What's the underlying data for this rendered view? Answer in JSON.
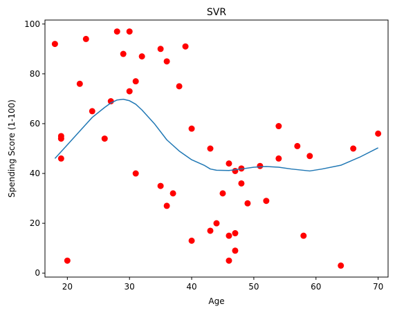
{
  "chart_data": {
    "type": "scatter",
    "title": "SVR",
    "xlabel": "Age",
    "ylabel": "Spending Score (1-100)",
    "xlim": [
      16.4,
      71.6
    ],
    "ylim": [
      -1.6,
      101.6
    ],
    "xticks": [
      20,
      30,
      40,
      50,
      60,
      70
    ],
    "yticks": [
      0,
      20,
      40,
      60,
      80,
      100
    ],
    "grid": false,
    "scatter_color": "#ff0000",
    "line_color": "#1f77b4",
    "points": [
      [
        18,
        92
      ],
      [
        19,
        55
      ],
      [
        19,
        54
      ],
      [
        19,
        46
      ],
      [
        20,
        5
      ],
      [
        22,
        76
      ],
      [
        23,
        94
      ],
      [
        24,
        65
      ],
      [
        26,
        54
      ],
      [
        27,
        69
      ],
      [
        28,
        97
      ],
      [
        29,
        88
      ],
      [
        30,
        97
      ],
      [
        30,
        73
      ],
      [
        31,
        77
      ],
      [
        31,
        40
      ],
      [
        32,
        87
      ],
      [
        35,
        90
      ],
      [
        35,
        35
      ],
      [
        36,
        85
      ],
      [
        36,
        27
      ],
      [
        37,
        32
      ],
      [
        38,
        75
      ],
      [
        39,
        91
      ],
      [
        40,
        58
      ],
      [
        40,
        13
      ],
      [
        43,
        50
      ],
      [
        43,
        17
      ],
      [
        44,
        20
      ],
      [
        45,
        32
      ],
      [
        46,
        44
      ],
      [
        46,
        15
      ],
      [
        46,
        5
      ],
      [
        47,
        41
      ],
      [
        47,
        16
      ],
      [
        47,
        9
      ],
      [
        48,
        42
      ],
      [
        48,
        36
      ],
      [
        49,
        28
      ],
      [
        51,
        43
      ],
      [
        52,
        29
      ],
      [
        54,
        59
      ],
      [
        54,
        46
      ],
      [
        57,
        51
      ],
      [
        58,
        15
      ],
      [
        59,
        47
      ],
      [
        64,
        3
      ],
      [
        66,
        50
      ],
      [
        70,
        56
      ]
    ],
    "curve": [
      [
        18,
        46
      ],
      [
        20,
        51.5
      ],
      [
        22,
        57
      ],
      [
        24,
        62.5
      ],
      [
        26,
        66.5
      ],
      [
        27,
        68.3
      ],
      [
        28,
        69.5
      ],
      [
        29,
        69.8
      ],
      [
        30,
        69.2
      ],
      [
        31,
        67.8
      ],
      [
        32,
        65.5
      ],
      [
        34,
        60
      ],
      [
        36,
        53.5
      ],
      [
        38,
        49
      ],
      [
        40,
        45.5
      ],
      [
        42,
        43.3
      ],
      [
        43,
        41.8
      ],
      [
        44,
        41.3
      ],
      [
        46,
        41.2
      ],
      [
        48,
        41.8
      ],
      [
        50,
        42.5
      ],
      [
        52,
        42.8
      ],
      [
        54,
        42.5
      ],
      [
        56,
        41.8
      ],
      [
        59,
        41
      ],
      [
        61,
        41.8
      ],
      [
        64,
        43.3
      ],
      [
        67,
        46.5
      ],
      [
        70,
        50.3
      ]
    ]
  }
}
